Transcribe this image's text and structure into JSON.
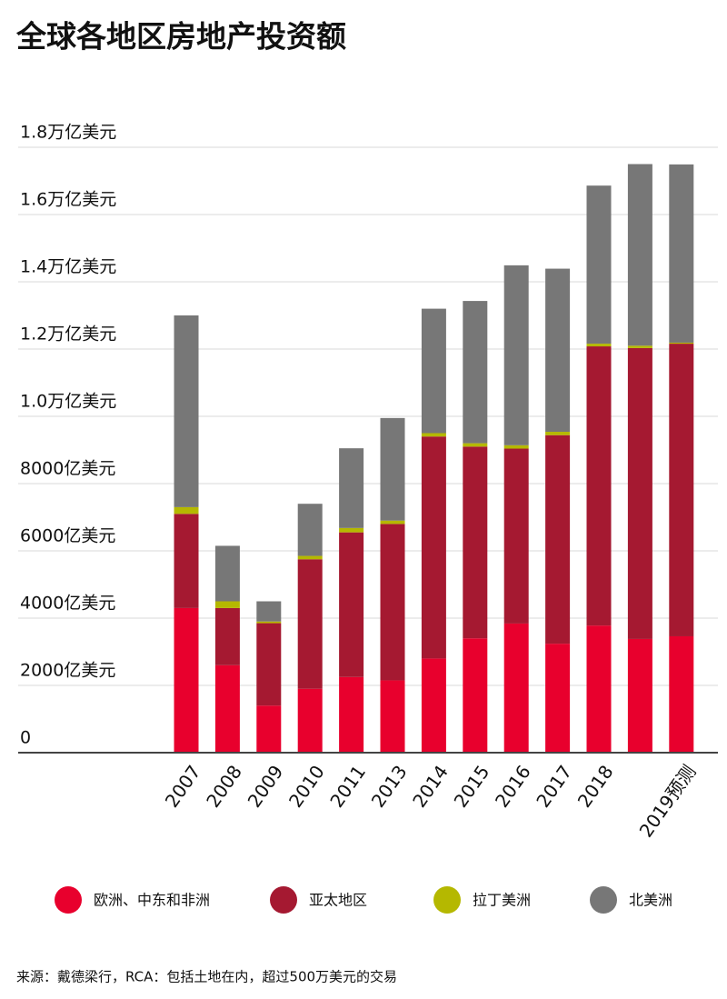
{
  "chart_data": {
    "type": "stacked_bar",
    "title": "全球各地区房地产投资额",
    "source": "来源：戴德梁行，RCA：包括土地在内，超过500万美元的交易",
    "categories": [
      "2007",
      "2008",
      "2009",
      "2010",
      "2011",
      "2013",
      "2014",
      "2015",
      "2016",
      "2017",
      "2018",
      null,
      "2019预测"
    ],
    "series": [
      {
        "name": "欧洲、中东和非洲",
        "color": "#e8002d",
        "values": [
          4300,
          2600,
          1400,
          1900,
          2250,
          2150,
          2800,
          3400,
          3840,
          3240,
          3780,
          3380,
          3460
        ]
      },
      {
        "name": "亚太地区",
        "color": "#a51931",
        "values": [
          2800,
          1700,
          2450,
          3850,
          4300,
          4650,
          6600,
          5700,
          5200,
          6200,
          8300,
          8650,
          8700
        ]
      },
      {
        "name": "拉丁美洲",
        "color": "#b5b800",
        "values": [
          200,
          200,
          50,
          100,
          130,
          100,
          100,
          100,
          100,
          100,
          80,
          70,
          30
        ]
      },
      {
        "name": "北美洲",
        "color": "#777777",
        "values": [
          5700,
          1650,
          600,
          1550,
          2370,
          3050,
          3700,
          4230,
          5350,
          4850,
          4700,
          5400,
          5300
        ]
      }
    ],
    "ylim": [
      0,
      18000
    ],
    "yticks": [
      0,
      {
        "value": 2000,
        "label": "2000亿美元"
      },
      {
        "value": 4000,
        "label": "4000亿美元"
      },
      {
        "value": 6000,
        "label": "6000亿美元"
      },
      {
        "value": 8000,
        "label": "8000亿美元"
      },
      {
        "value": 10000,
        "label": "1.0万亿美元"
      },
      {
        "value": 12000,
        "label": "1.2万亿美元"
      },
      {
        "value": 14000,
        "label": "1.4万亿美元"
      },
      {
        "value": 16000,
        "label": "1.6万亿美元"
      },
      {
        "value": 18000,
        "label": "1.8万亿美元"
      }
    ],
    "grid": true
  }
}
